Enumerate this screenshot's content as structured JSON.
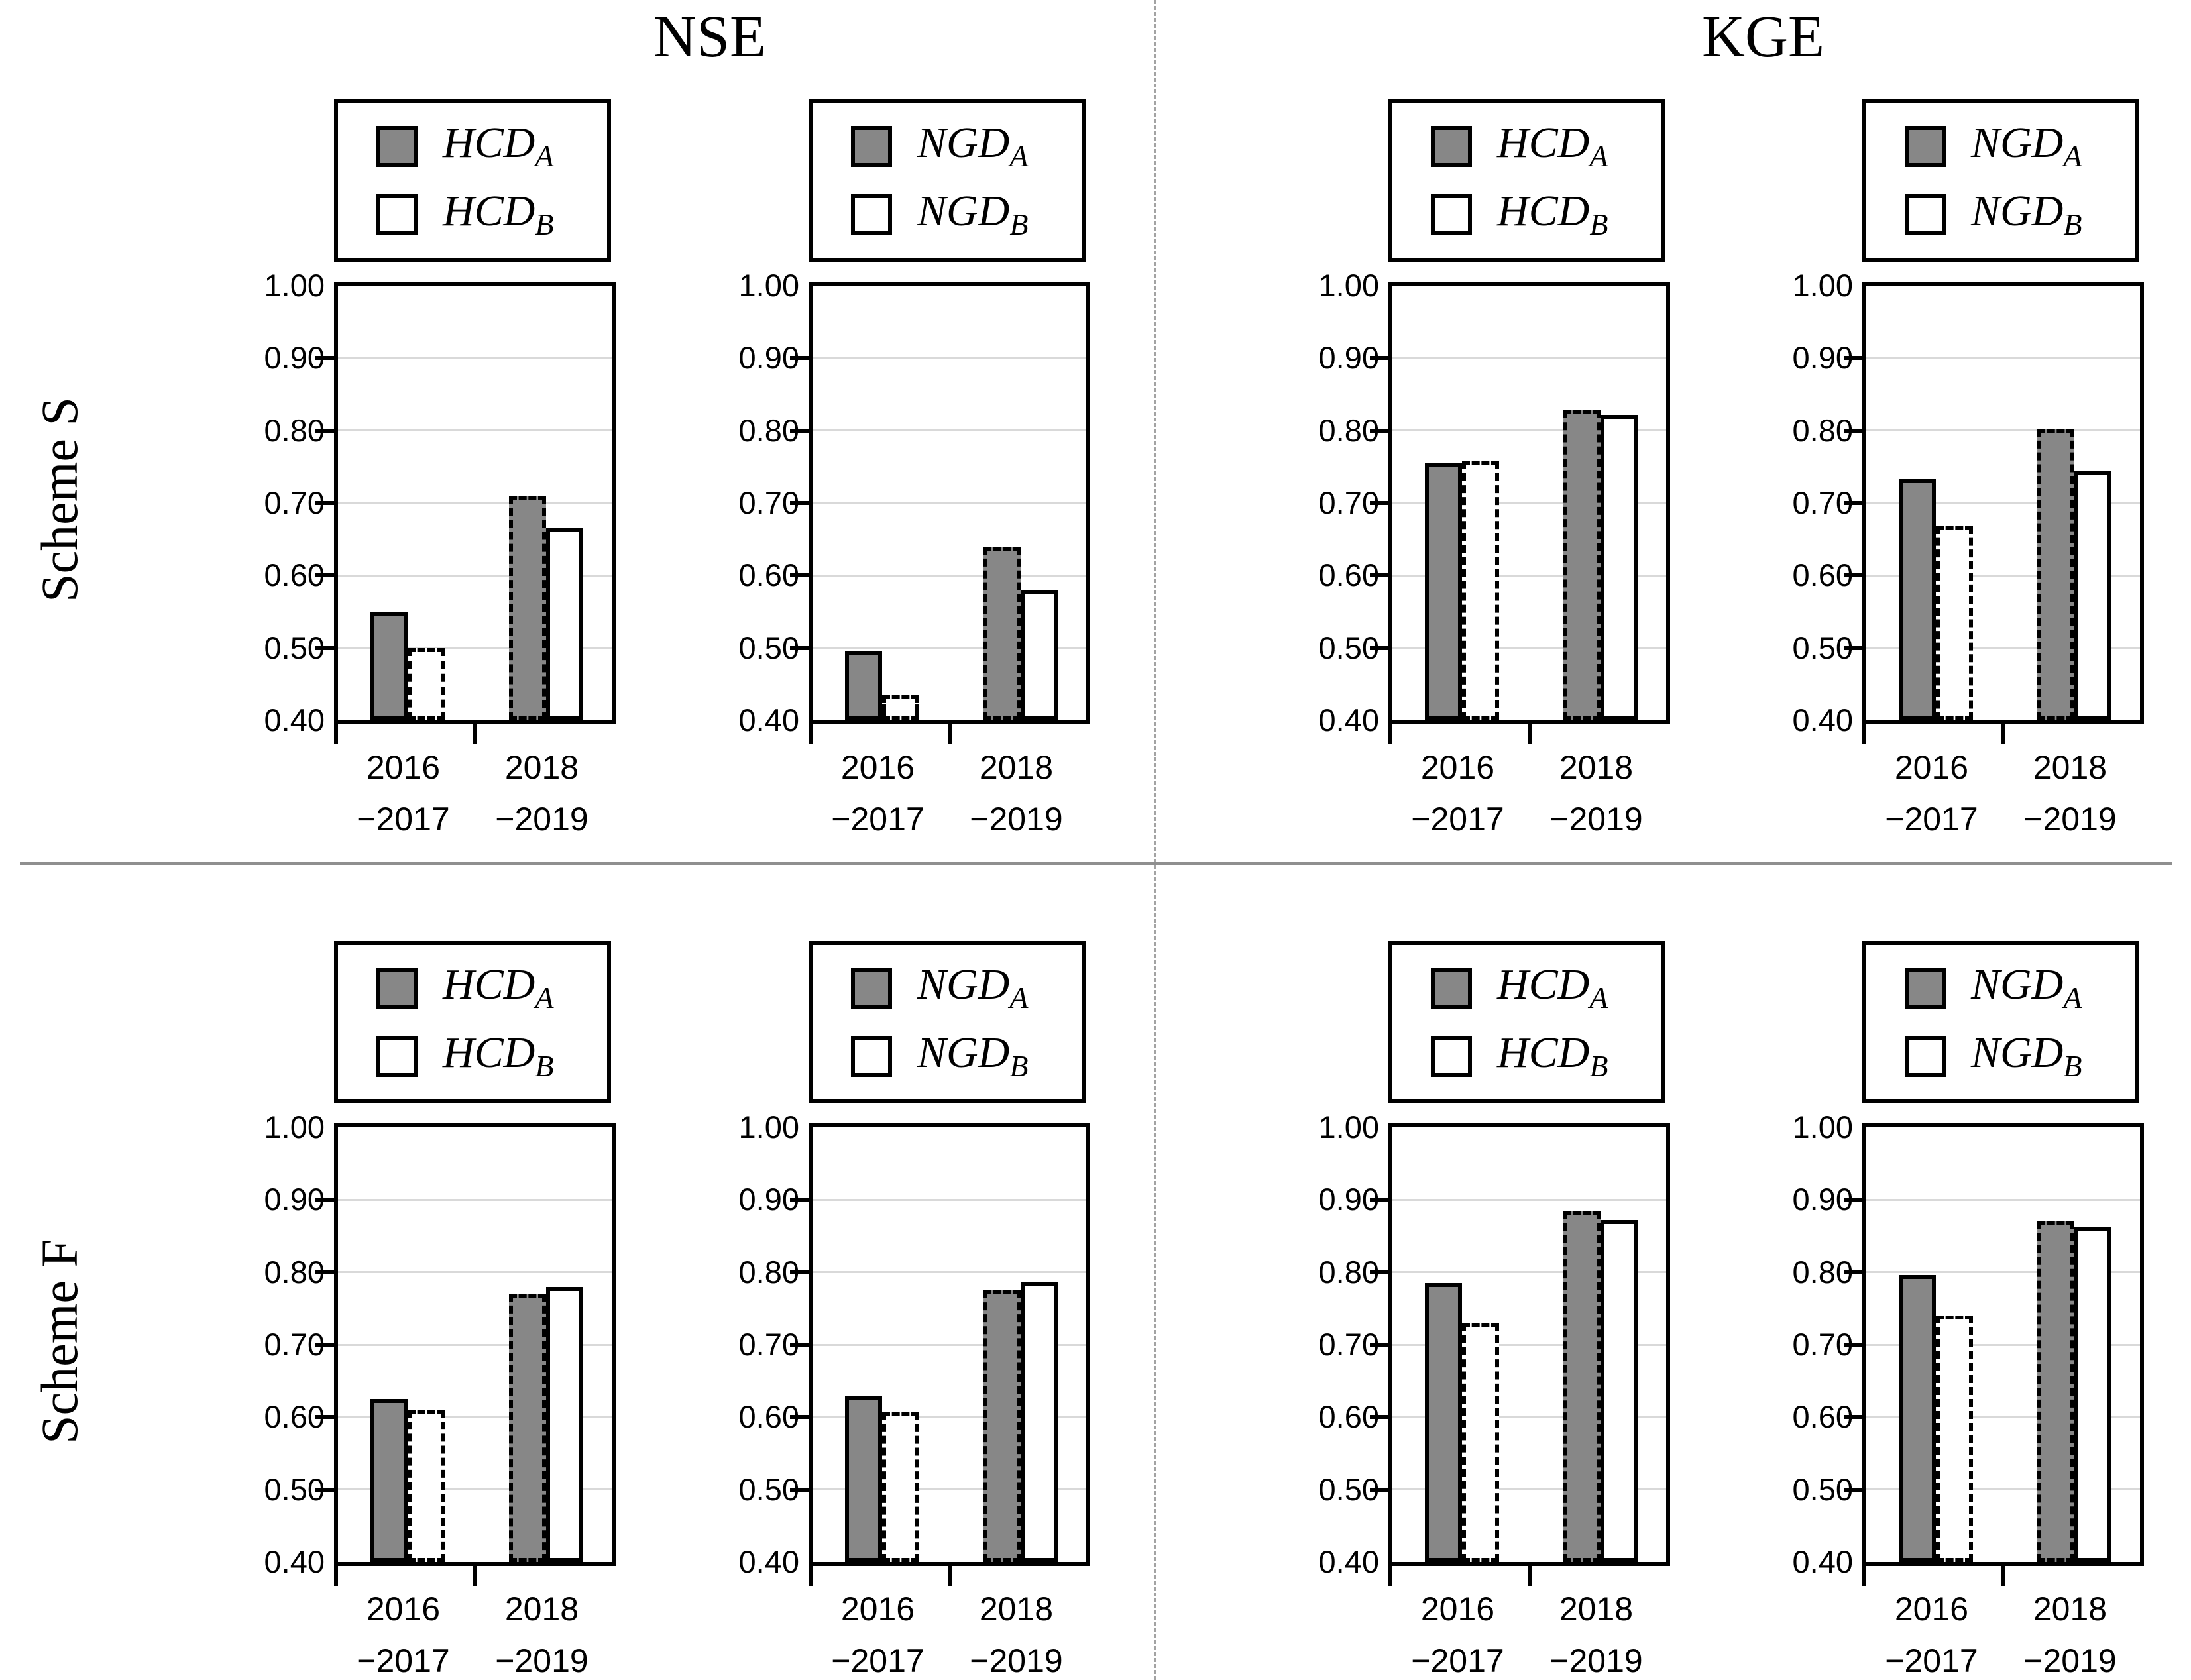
{
  "figure": {
    "half_titles": [
      {
        "label": "NSE"
      },
      {
        "label": "KGE"
      }
    ],
    "row_labels": [
      {
        "label": "Scheme S"
      },
      {
        "label": "Scheme F"
      }
    ],
    "colors": {
      "bar_gray": "#878787",
      "bar_white": "#ffffff",
      "gridline": "#d9d9d9",
      "axis_black": "#000000",
      "divider_gray": "#8f8f8f"
    }
  },
  "chart_data": {
    "type": "bar",
    "y_axis": {
      "min": 0.4,
      "max": 1.0,
      "tick_step": 0.1,
      "tick_labels": [
        "1.00",
        "0.90",
        "0.80",
        "0.70",
        "0.60",
        "0.50",
        "0.40"
      ],
      "grid_values": [
        0.9,
        0.8,
        0.7,
        0.6,
        0.5
      ]
    },
    "x_categories": [
      {
        "lines": [
          "2016",
          "−2017"
        ]
      },
      {
        "lines": [
          "2018",
          "−2019"
        ]
      }
    ],
    "border_style_note": "series A: solid border in 2016−2017, dashed in 2018−2019; series B: dashed in 2016−2017, solid in 2018−2019",
    "panels": [
      {
        "id": "scheme-s-nse-hcd",
        "row": "Scheme S",
        "half": "NSE",
        "grid_pos": {
          "row": 0,
          "col": 0
        },
        "legend": [
          {
            "main": "HCD",
            "sub": "A",
            "swatch": "gray"
          },
          {
            "main": "HCD",
            "sub": "B",
            "swatch": "white"
          }
        ],
        "series": [
          {
            "name": "HCD_A",
            "fill": "gray",
            "values": [
              0.55,
              0.71
            ],
            "border_styles": [
              "solid",
              "dashed"
            ]
          },
          {
            "name": "HCD_B",
            "fill": "white",
            "values": [
              0.5,
              0.665
            ],
            "border_styles": [
              "dashed",
              "solid"
            ]
          }
        ]
      },
      {
        "id": "scheme-s-nse-ngd",
        "row": "Scheme S",
        "half": "NSE",
        "grid_pos": {
          "row": 0,
          "col": 1
        },
        "legend": [
          {
            "main": "NGD",
            "sub": "A",
            "swatch": "gray"
          },
          {
            "main": "NGD",
            "sub": "B",
            "swatch": "white"
          }
        ],
        "series": [
          {
            "name": "NGD_A",
            "fill": "gray",
            "values": [
              0.495,
              0.64
            ],
            "border_styles": [
              "solid",
              "dashed"
            ]
          },
          {
            "name": "NGD_B",
            "fill": "white",
            "values": [
              0.435,
              0.58
            ],
            "border_styles": [
              "dashed",
              "solid"
            ]
          }
        ]
      },
      {
        "id": "scheme-s-kge-hcd",
        "row": "Scheme S",
        "half": "KGE",
        "grid_pos": {
          "row": 0,
          "col": 2
        },
        "legend": [
          {
            "main": "HCD",
            "sub": "A",
            "swatch": "gray"
          },
          {
            "main": "HCD",
            "sub": "B",
            "swatch": "white"
          }
        ],
        "series": [
          {
            "name": "HCD_A",
            "fill": "gray",
            "values": [
              0.755,
              0.828
            ],
            "border_styles": [
              "solid",
              "dashed"
            ]
          },
          {
            "name": "HCD_B",
            "fill": "white",
            "values": [
              0.758,
              0.822
            ],
            "border_styles": [
              "dashed",
              "solid"
            ]
          }
        ]
      },
      {
        "id": "scheme-s-kge-ngd",
        "row": "Scheme S",
        "half": "KGE",
        "grid_pos": {
          "row": 0,
          "col": 3
        },
        "legend": [
          {
            "main": "NGD",
            "sub": "A",
            "swatch": "gray"
          },
          {
            "main": "NGD",
            "sub": "B",
            "swatch": "white"
          }
        ],
        "series": [
          {
            "name": "NGD_A",
            "fill": "gray",
            "values": [
              0.733,
              0.802
            ],
            "border_styles": [
              "solid",
              "dashed"
            ]
          },
          {
            "name": "NGD_B",
            "fill": "white",
            "values": [
              0.668,
              0.745
            ],
            "border_styles": [
              "dashed",
              "solid"
            ]
          }
        ]
      },
      {
        "id": "scheme-f-nse-hcd",
        "row": "Scheme F",
        "half": "NSE",
        "grid_pos": {
          "row": 1,
          "col": 0
        },
        "legend": [
          {
            "main": "HCD",
            "sub": "A",
            "swatch": "gray"
          },
          {
            "main": "HCD",
            "sub": "B",
            "swatch": "white"
          }
        ],
        "series": [
          {
            "name": "HCD_A",
            "fill": "gray",
            "values": [
              0.625,
              0.77
            ],
            "border_styles": [
              "solid",
              "dashed"
            ]
          },
          {
            "name": "HCD_B",
            "fill": "white",
            "values": [
              0.61,
              0.78
            ],
            "border_styles": [
              "dashed",
              "solid"
            ]
          }
        ]
      },
      {
        "id": "scheme-f-nse-ngd",
        "row": "Scheme F",
        "half": "NSE",
        "grid_pos": {
          "row": 1,
          "col": 1
        },
        "legend": [
          {
            "main": "NGD",
            "sub": "A",
            "swatch": "gray"
          },
          {
            "main": "NGD",
            "sub": "B",
            "swatch": "white"
          }
        ],
        "series": [
          {
            "name": "NGD_A",
            "fill": "gray",
            "values": [
              0.63,
              0.775
            ],
            "border_styles": [
              "solid",
              "dashed"
            ]
          },
          {
            "name": "NGD_B",
            "fill": "white",
            "values": [
              0.607,
              0.787
            ],
            "border_styles": [
              "dashed",
              "solid"
            ]
          }
        ]
      },
      {
        "id": "scheme-f-kge-hcd",
        "row": "Scheme F",
        "half": "KGE",
        "grid_pos": {
          "row": 1,
          "col": 2
        },
        "legend": [
          {
            "main": "HCD",
            "sub": "A",
            "swatch": "gray"
          },
          {
            "main": "HCD",
            "sub": "B",
            "swatch": "white"
          }
        ],
        "series": [
          {
            "name": "HCD_A",
            "fill": "gray",
            "values": [
              0.785,
              0.884
            ],
            "border_styles": [
              "solid",
              "dashed"
            ]
          },
          {
            "name": "HCD_B",
            "fill": "white",
            "values": [
              0.73,
              0.872
            ],
            "border_styles": [
              "dashed",
              "solid"
            ]
          }
        ]
      },
      {
        "id": "scheme-f-kge-ngd",
        "row": "Scheme F",
        "half": "KGE",
        "grid_pos": {
          "row": 1,
          "col": 3
        },
        "legend": [
          {
            "main": "NGD",
            "sub": "A",
            "swatch": "gray"
          },
          {
            "main": "NGD",
            "sub": "B",
            "swatch": "white"
          }
        ],
        "series": [
          {
            "name": "NGD_A",
            "fill": "gray",
            "values": [
              0.796,
              0.87
            ],
            "border_styles": [
              "solid",
              "dashed"
            ]
          },
          {
            "name": "NGD_B",
            "fill": "white",
            "values": [
              0.74,
              0.862
            ],
            "border_styles": [
              "dashed",
              "solid"
            ]
          }
        ]
      }
    ]
  }
}
